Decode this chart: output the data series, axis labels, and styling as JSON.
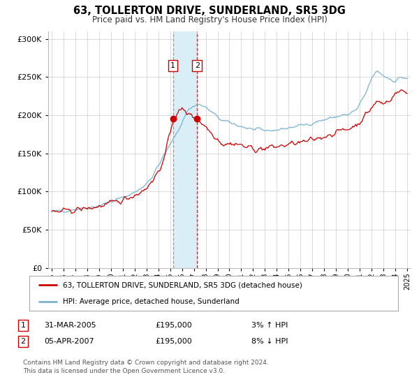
{
  "title": "63, TOLLERTON DRIVE, SUNDERLAND, SR5 3DG",
  "subtitle": "Price paid vs. HM Land Registry's House Price Index (HPI)",
  "ylim": [
    0,
    310000
  ],
  "xlim": [
    1994.7,
    2025.3
  ],
  "yticks": [
    0,
    50000,
    100000,
    150000,
    200000,
    250000,
    300000
  ],
  "ytick_labels": [
    "£0",
    "£50K",
    "£100K",
    "£150K",
    "£200K",
    "£250K",
    "£300K"
  ],
  "xtick_years": [
    1995,
    1996,
    1997,
    1998,
    1999,
    2000,
    2001,
    2002,
    2003,
    2004,
    2005,
    2006,
    2007,
    2008,
    2009,
    2010,
    2011,
    2012,
    2013,
    2014,
    2015,
    2016,
    2017,
    2018,
    2019,
    2020,
    2021,
    2022,
    2023,
    2024,
    2025
  ],
  "marker1_x": 2005.23,
  "marker1_y": 195000,
  "marker1_label": "1",
  "marker1_date": "31-MAR-2005",
  "marker1_price": "£195,000",
  "marker1_hpi": "3% ↑ HPI",
  "marker2_x": 2007.27,
  "marker2_y": 195000,
  "marker2_label": "2",
  "marker2_date": "05-APR-2007",
  "marker2_price": "£195,000",
  "marker2_hpi": "8% ↓ HPI",
  "shade_x1": 2005.23,
  "shade_x2": 2007.27,
  "red_line_color": "#cc0000",
  "blue_line_color": "#7ab3d4",
  "dashed_gray_color": "#888888",
  "shade_color": "#daeef8",
  "legend_label_red": "63, TOLLERTON DRIVE, SUNDERLAND, SR5 3DG (detached house)",
  "legend_label_blue": "HPI: Average price, detached house, Sunderland",
  "background_color": "#ffffff",
  "grid_color": "#cccccc",
  "footer_text": "Contains HM Land Registry data © Crown copyright and database right 2024.\nThis data is licensed under the Open Government Licence v3.0."
}
